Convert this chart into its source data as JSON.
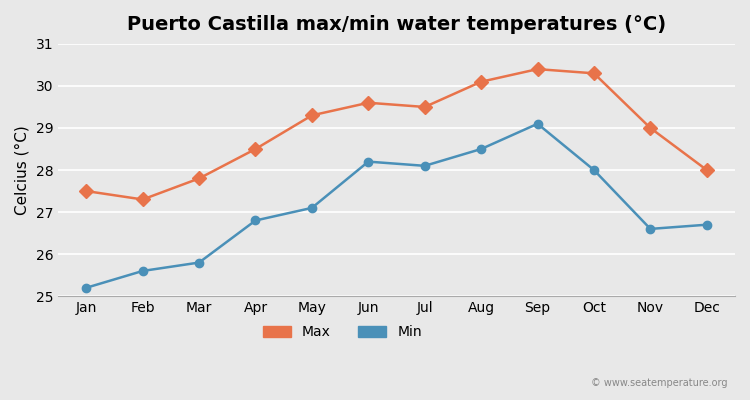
{
  "title": "Puerto Castilla max/min water temperatures (°C)",
  "xlabel": "",
  "ylabel": "Celcius (°C)",
  "months": [
    "Jan",
    "Feb",
    "Mar",
    "Apr",
    "May",
    "Jun",
    "Jul",
    "Aug",
    "Sep",
    "Oct",
    "Nov",
    "Dec"
  ],
  "max_temps": [
    27.5,
    27.3,
    27.8,
    28.5,
    29.3,
    29.6,
    29.5,
    30.1,
    30.4,
    30.3,
    29.0,
    28.0
  ],
  "min_temps": [
    25.2,
    25.6,
    25.8,
    26.8,
    27.1,
    28.2,
    28.1,
    28.5,
    29.1,
    28.0,
    26.6,
    26.7
  ],
  "max_color": "#e8734a",
  "min_color": "#4a90b8",
  "ylim": [
    25,
    31
  ],
  "yticks": [
    25,
    26,
    27,
    28,
    29,
    30,
    31
  ],
  "background_color": "#e8e8e8",
  "plot_bg_color": "#e8e8e8",
  "grid_color": "#ffffff",
  "title_fontsize": 14,
  "axis_label_fontsize": 11,
  "tick_fontsize": 10,
  "legend_fontsize": 10,
  "watermark": "© www.seatemperature.org",
  "line_width": 1.8,
  "marker_size": 7
}
